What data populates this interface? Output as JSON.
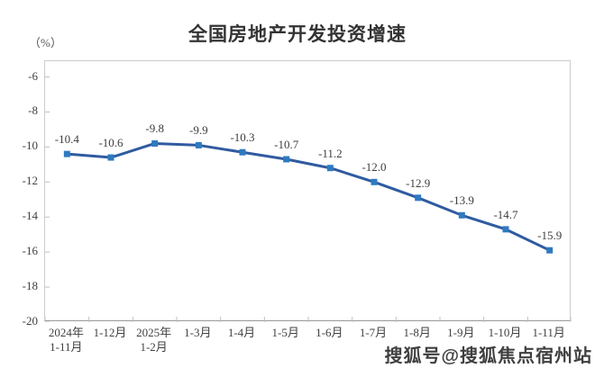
{
  "page": {
    "unit_label": "（%）",
    "watermark": "搜狐号@搜狐焦点宿州站"
  },
  "chart_data": {
    "type": "line",
    "title": "全国房地产开发投资增速",
    "ylabel": "（%）",
    "xlabel": "",
    "categories": [
      [
        "2024年",
        "1-11月"
      ],
      [
        "1-12月"
      ],
      [
        "2025年",
        "1-2月"
      ],
      [
        "1-3月"
      ],
      [
        "1-4月"
      ],
      [
        "1-5月"
      ],
      [
        "1-6月"
      ],
      [
        "1-7月"
      ],
      [
        "1-8月"
      ],
      [
        "1-9月"
      ],
      [
        "1-10月"
      ],
      [
        "1-11月"
      ]
    ],
    "values": [
      -10.4,
      -10.6,
      -9.8,
      -9.9,
      -10.3,
      -10.7,
      -11.2,
      -12.0,
      -12.9,
      -13.9,
      -14.7,
      -15.9
    ],
    "data_labels": [
      "-10.4",
      "-10.6",
      "-9.8",
      "-9.9",
      "-10.3",
      "-10.7",
      "-11.2",
      "-12.0",
      "-12.9",
      "-13.9",
      "-14.7",
      "-15.9"
    ],
    "yticks": [
      -6,
      -8,
      -10,
      -12,
      -14,
      -16,
      -18,
      -20
    ],
    "ylim": [
      -20,
      -5.1
    ],
    "grid": false,
    "legend": "none",
    "colors": {
      "line": "#2f5ba0",
      "marker": "#2e7ac0",
      "axis": "#bfbfbf",
      "text": "#404040"
    }
  }
}
